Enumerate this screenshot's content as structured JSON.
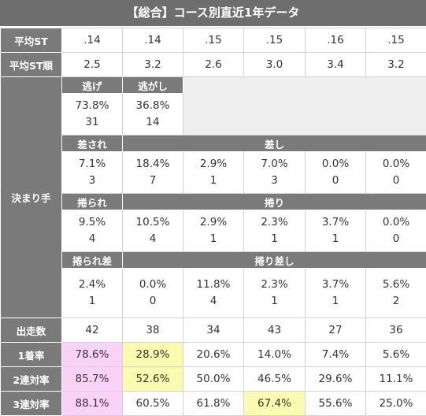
{
  "title": "【総合】コース別直近1年データ",
  "rows": {
    "avg_st": {
      "label": "平均ST",
      "values": [
        ".14",
        ".14",
        ".15",
        ".15",
        ".16",
        ".15"
      ]
    },
    "avg_st_rank": {
      "label": "平均ST順",
      "values": [
        "2.5",
        "3.2",
        "2.6",
        "3.0",
        "3.4",
        "3.2"
      ]
    }
  },
  "kimarite": {
    "label": "決まり手",
    "nige_label": "逃げ",
    "nigashi_label": "逃がし",
    "nige": {
      "pct": "73.8%",
      "count": "31"
    },
    "nigashi": {
      "pct": "36.8%",
      "count": "14"
    },
    "sasare_label": "差され",
    "sashi_label": "差し",
    "sasare": {
      "pct": "7.1%",
      "count": "3"
    },
    "sashi": [
      {
        "pct": "18.4%",
        "count": "7"
      },
      {
        "pct": "2.9%",
        "count": "1"
      },
      {
        "pct": "7.0%",
        "count": "3"
      },
      {
        "pct": "0.0%",
        "count": "0"
      },
      {
        "pct": "0.0%",
        "count": "0"
      }
    ],
    "makurare_label": "捲られ",
    "makuri_label": "捲り",
    "makurare": {
      "pct": "9.5%",
      "count": "4"
    },
    "makuri": [
      {
        "pct": "10.5%",
        "count": "4"
      },
      {
        "pct": "2.9%",
        "count": "1"
      },
      {
        "pct": "2.3%",
        "count": "1"
      },
      {
        "pct": "3.7%",
        "count": "1"
      },
      {
        "pct": "0.0%",
        "count": "0"
      }
    ],
    "makurare_sa_label": "捲られ差",
    "makuri_sashi_label": "捲り差し",
    "makurare_sa": {
      "pct": "2.4%",
      "count": "1"
    },
    "makuri_sashi": [
      {
        "pct": "0.0%",
        "count": "0"
      },
      {
        "pct": "11.8%",
        "count": "4"
      },
      {
        "pct": "2.3%",
        "count": "1"
      },
      {
        "pct": "3.7%",
        "count": "1"
      },
      {
        "pct": "5.6%",
        "count": "2"
      }
    ]
  },
  "starts": {
    "label": "出走数",
    "values": [
      "42",
      "38",
      "34",
      "43",
      "27",
      "36"
    ]
  },
  "win_rate": {
    "label": "1着率",
    "values": [
      "78.6%",
      "28.9%",
      "20.6%",
      "14.0%",
      "7.4%",
      "5.6%"
    ]
  },
  "top2_rate": {
    "label": "2連対率",
    "values": [
      "85.7%",
      "52.6%",
      "50.0%",
      "46.5%",
      "29.6%",
      "11.1%"
    ]
  },
  "top3_rate": {
    "label": "3連対率",
    "values": [
      "88.1%",
      "60.5%",
      "61.8%",
      "67.4%",
      "55.6%",
      "25.0%"
    ]
  },
  "colors": {
    "header_bg": "#7a7a7a",
    "pink": "#f9d2f7",
    "yellow": "#fbfbae",
    "blank": "#eeeeee"
  }
}
